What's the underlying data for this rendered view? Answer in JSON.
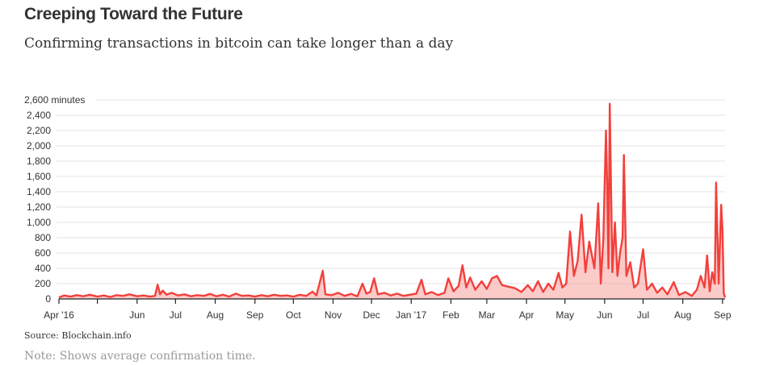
{
  "header": {
    "title": "Creeping Toward the Future",
    "subtitle": "Confirming transactions in bitcoin can take longer than a day"
  },
  "footer": {
    "source": "Source: Blockchain.info",
    "note": "Note: Shows average confirmation time."
  },
  "colors": {
    "series": "#f2403c",
    "fill": "#f5a09c",
    "grid": "#e3e3e3",
    "axis": "#222222",
    "text": "#333333"
  },
  "chart_data": {
    "type": "area",
    "title": "Creeping Toward the Future",
    "subtitle": "Confirming transactions in bitcoin can take longer than a day",
    "xlabel": "",
    "ylabel": "minutes",
    "x_range": [
      "2016-04-01",
      "2017-09-03"
    ],
    "ylim": [
      0,
      2600
    ],
    "grid": true,
    "y_ticks": [
      {
        "value": 0,
        "label": "0"
      },
      {
        "value": 200,
        "label": "200"
      },
      {
        "value": 400,
        "label": "400"
      },
      {
        "value": 600,
        "label": "600"
      },
      {
        "value": 800,
        "label": "800"
      },
      {
        "value": 1000,
        "label": "1,000"
      },
      {
        "value": 1200,
        "label": "1,200"
      },
      {
        "value": 1400,
        "label": "1,400"
      },
      {
        "value": 1600,
        "label": "1,600"
      },
      {
        "value": 1800,
        "label": "1,800"
      },
      {
        "value": 2000,
        "label": "2,000"
      },
      {
        "value": 2200,
        "label": "2,200"
      },
      {
        "value": 2400,
        "label": "2,400"
      },
      {
        "value": 2600,
        "label": "2,600 minutes"
      }
    ],
    "x_ticks": [
      {
        "date": "2016-04-01",
        "label": "Apr '16"
      },
      {
        "date": "2016-05-01",
        "label": ""
      },
      {
        "date": "2016-06-01",
        "label": "Jun"
      },
      {
        "date": "2016-07-01",
        "label": "Jul"
      },
      {
        "date": "2016-08-01",
        "label": "Aug"
      },
      {
        "date": "2016-09-01",
        "label": "Sep"
      },
      {
        "date": "2016-10-01",
        "label": "Oct"
      },
      {
        "date": "2016-11-01",
        "label": "Nov"
      },
      {
        "date": "2016-12-01",
        "label": "Dec"
      },
      {
        "date": "2017-01-01",
        "label": "Jan '17"
      },
      {
        "date": "2017-02-01",
        "label": "Feb"
      },
      {
        "date": "2017-03-01",
        "label": "Mar"
      },
      {
        "date": "2017-04-01",
        "label": "Apr"
      },
      {
        "date": "2017-05-01",
        "label": "May"
      },
      {
        "date": "2017-06-01",
        "label": "Jun"
      },
      {
        "date": "2017-07-01",
        "label": "Jul"
      },
      {
        "date": "2017-08-01",
        "label": "Aug"
      },
      {
        "date": "2017-09-01",
        "label": "Sep"
      }
    ],
    "series": [
      {
        "name": "Average confirmation time (minutes)",
        "points": [
          [
            "2016-04-01",
            20
          ],
          [
            "2016-04-05",
            45
          ],
          [
            "2016-04-10",
            30
          ],
          [
            "2016-04-15",
            50
          ],
          [
            "2016-04-20",
            35
          ],
          [
            "2016-04-25",
            55
          ],
          [
            "2016-05-01",
            30
          ],
          [
            "2016-05-06",
            45
          ],
          [
            "2016-05-11",
            25
          ],
          [
            "2016-05-16",
            50
          ],
          [
            "2016-05-21",
            40
          ],
          [
            "2016-05-26",
            60
          ],
          [
            "2016-06-01",
            35
          ],
          [
            "2016-06-06",
            45
          ],
          [
            "2016-06-11",
            30
          ],
          [
            "2016-06-15",
            40
          ],
          [
            "2016-06-17",
            185
          ],
          [
            "2016-06-19",
            60
          ],
          [
            "2016-06-21",
            110
          ],
          [
            "2016-06-24",
            55
          ],
          [
            "2016-06-28",
            80
          ],
          [
            "2016-07-03",
            45
          ],
          [
            "2016-07-08",
            60
          ],
          [
            "2016-07-13",
            35
          ],
          [
            "2016-07-18",
            50
          ],
          [
            "2016-07-23",
            40
          ],
          [
            "2016-07-28",
            65
          ],
          [
            "2016-08-02",
            35
          ],
          [
            "2016-08-07",
            55
          ],
          [
            "2016-08-12",
            30
          ],
          [
            "2016-08-17",
            70
          ],
          [
            "2016-08-22",
            40
          ],
          [
            "2016-08-27",
            45
          ],
          [
            "2016-09-01",
            30
          ],
          [
            "2016-09-06",
            50
          ],
          [
            "2016-09-11",
            35
          ],
          [
            "2016-09-16",
            55
          ],
          [
            "2016-09-21",
            40
          ],
          [
            "2016-09-26",
            45
          ],
          [
            "2016-10-01",
            30
          ],
          [
            "2016-10-06",
            55
          ],
          [
            "2016-10-11",
            40
          ],
          [
            "2016-10-16",
            95
          ],
          [
            "2016-10-19",
            45
          ],
          [
            "2016-10-24",
            370
          ],
          [
            "2016-10-26",
            60
          ],
          [
            "2016-10-31",
            50
          ],
          [
            "2016-11-05",
            80
          ],
          [
            "2016-11-10",
            40
          ],
          [
            "2016-11-15",
            65
          ],
          [
            "2016-11-20",
            35
          ],
          [
            "2016-11-24",
            200
          ],
          [
            "2016-11-27",
            70
          ],
          [
            "2016-11-30",
            90
          ],
          [
            "2016-12-03",
            270
          ],
          [
            "2016-12-06",
            60
          ],
          [
            "2016-12-11",
            80
          ],
          [
            "2016-12-16",
            45
          ],
          [
            "2016-12-21",
            70
          ],
          [
            "2016-12-26",
            40
          ],
          [
            "2016-12-31",
            55
          ],
          [
            "2017-01-05",
            70
          ],
          [
            "2017-01-09",
            250
          ],
          [
            "2017-01-12",
            60
          ],
          [
            "2017-01-17",
            90
          ],
          [
            "2017-01-22",
            50
          ],
          [
            "2017-01-27",
            80
          ],
          [
            "2017-01-30",
            270
          ],
          [
            "2017-02-03",
            100
          ],
          [
            "2017-02-07",
            170
          ],
          [
            "2017-02-10",
            440
          ],
          [
            "2017-02-13",
            150
          ],
          [
            "2017-02-16",
            280
          ],
          [
            "2017-02-20",
            120
          ],
          [
            "2017-02-25",
            230
          ],
          [
            "2017-03-01",
            130
          ],
          [
            "2017-03-05",
            270
          ],
          [
            "2017-03-09",
            300
          ],
          [
            "2017-03-13",
            180
          ],
          [
            "2017-03-18",
            160
          ],
          [
            "2017-03-23",
            140
          ],
          [
            "2017-03-28",
            90
          ],
          [
            "2017-04-02",
            180
          ],
          [
            "2017-04-06",
            100
          ],
          [
            "2017-04-10",
            230
          ],
          [
            "2017-04-14",
            90
          ],
          [
            "2017-04-18",
            200
          ],
          [
            "2017-04-22",
            120
          ],
          [
            "2017-04-26",
            340
          ],
          [
            "2017-04-29",
            150
          ],
          [
            "2017-05-02",
            200
          ],
          [
            "2017-05-05",
            880
          ],
          [
            "2017-05-08",
            300
          ],
          [
            "2017-05-11",
            500
          ],
          [
            "2017-05-14",
            1100
          ],
          [
            "2017-05-17",
            350
          ],
          [
            "2017-05-20",
            750
          ],
          [
            "2017-05-24",
            400
          ],
          [
            "2017-05-27",
            1250
          ],
          [
            "2017-05-29",
            200
          ],
          [
            "2017-05-31",
            800
          ],
          [
            "2017-06-02",
            2200
          ],
          [
            "2017-06-03",
            1500
          ],
          [
            "2017-06-04",
            400
          ],
          [
            "2017-06-05",
            2550
          ],
          [
            "2017-06-07",
            350
          ],
          [
            "2017-06-09",
            1000
          ],
          [
            "2017-06-11",
            300
          ],
          [
            "2017-06-13",
            600
          ],
          [
            "2017-06-15",
            800
          ],
          [
            "2017-06-16",
            1880
          ],
          [
            "2017-06-18",
            300
          ],
          [
            "2017-06-21",
            480
          ],
          [
            "2017-06-24",
            150
          ],
          [
            "2017-06-27",
            200
          ],
          [
            "2017-07-01",
            650
          ],
          [
            "2017-07-04",
            120
          ],
          [
            "2017-07-08",
            200
          ],
          [
            "2017-07-12",
            80
          ],
          [
            "2017-07-16",
            150
          ],
          [
            "2017-07-20",
            60
          ],
          [
            "2017-07-25",
            220
          ],
          [
            "2017-07-29",
            50
          ],
          [
            "2017-08-03",
            90
          ],
          [
            "2017-08-08",
            40
          ],
          [
            "2017-08-12",
            120
          ],
          [
            "2017-08-15",
            300
          ],
          [
            "2017-08-18",
            150
          ],
          [
            "2017-08-20",
            570
          ],
          [
            "2017-08-22",
            100
          ],
          [
            "2017-08-24",
            350
          ],
          [
            "2017-08-26",
            200
          ],
          [
            "2017-08-27",
            1520
          ],
          [
            "2017-08-29",
            200
          ],
          [
            "2017-08-31",
            1230
          ],
          [
            "2017-09-01",
            900
          ],
          [
            "2017-09-02",
            80
          ],
          [
            "2017-09-03",
            20
          ]
        ]
      }
    ]
  }
}
